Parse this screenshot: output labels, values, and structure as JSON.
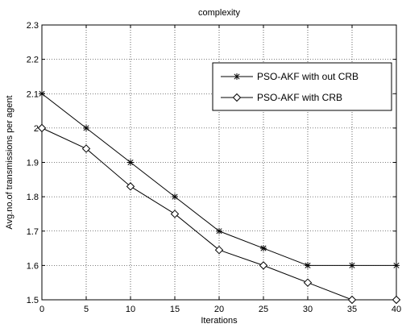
{
  "chart_data": {
    "type": "line",
    "title": "complexity",
    "xlabel": "Iterations",
    "ylabel": "Avg.no.of transmissions per agent",
    "x": [
      0,
      5,
      10,
      15,
      20,
      25,
      30,
      35,
      40
    ],
    "xlim": [
      0,
      40
    ],
    "ylim": [
      1.5,
      2.3
    ],
    "xticks": [
      "0",
      "5",
      "10",
      "15",
      "20",
      "25",
      "30",
      "35",
      "40"
    ],
    "yticks": [
      "1.5",
      "1.6",
      "1.7",
      "1.8",
      "1.9",
      "2",
      "2.1",
      "2.2",
      "2.3"
    ],
    "grid": true,
    "legend_position": "top-right",
    "series": [
      {
        "name": "PSO-AKF with out CRB",
        "marker": "star",
        "color": "#000000",
        "values": [
          2.1,
          2.0,
          1.9,
          1.8,
          1.7,
          1.65,
          1.6,
          1.6,
          1.6
        ]
      },
      {
        "name": "PSO-AKF with CRB",
        "marker": "diamond",
        "color": "#000000",
        "values": [
          2.0,
          1.94,
          1.83,
          1.75,
          1.645,
          1.6,
          1.55,
          1.5,
          1.5
        ]
      }
    ]
  }
}
